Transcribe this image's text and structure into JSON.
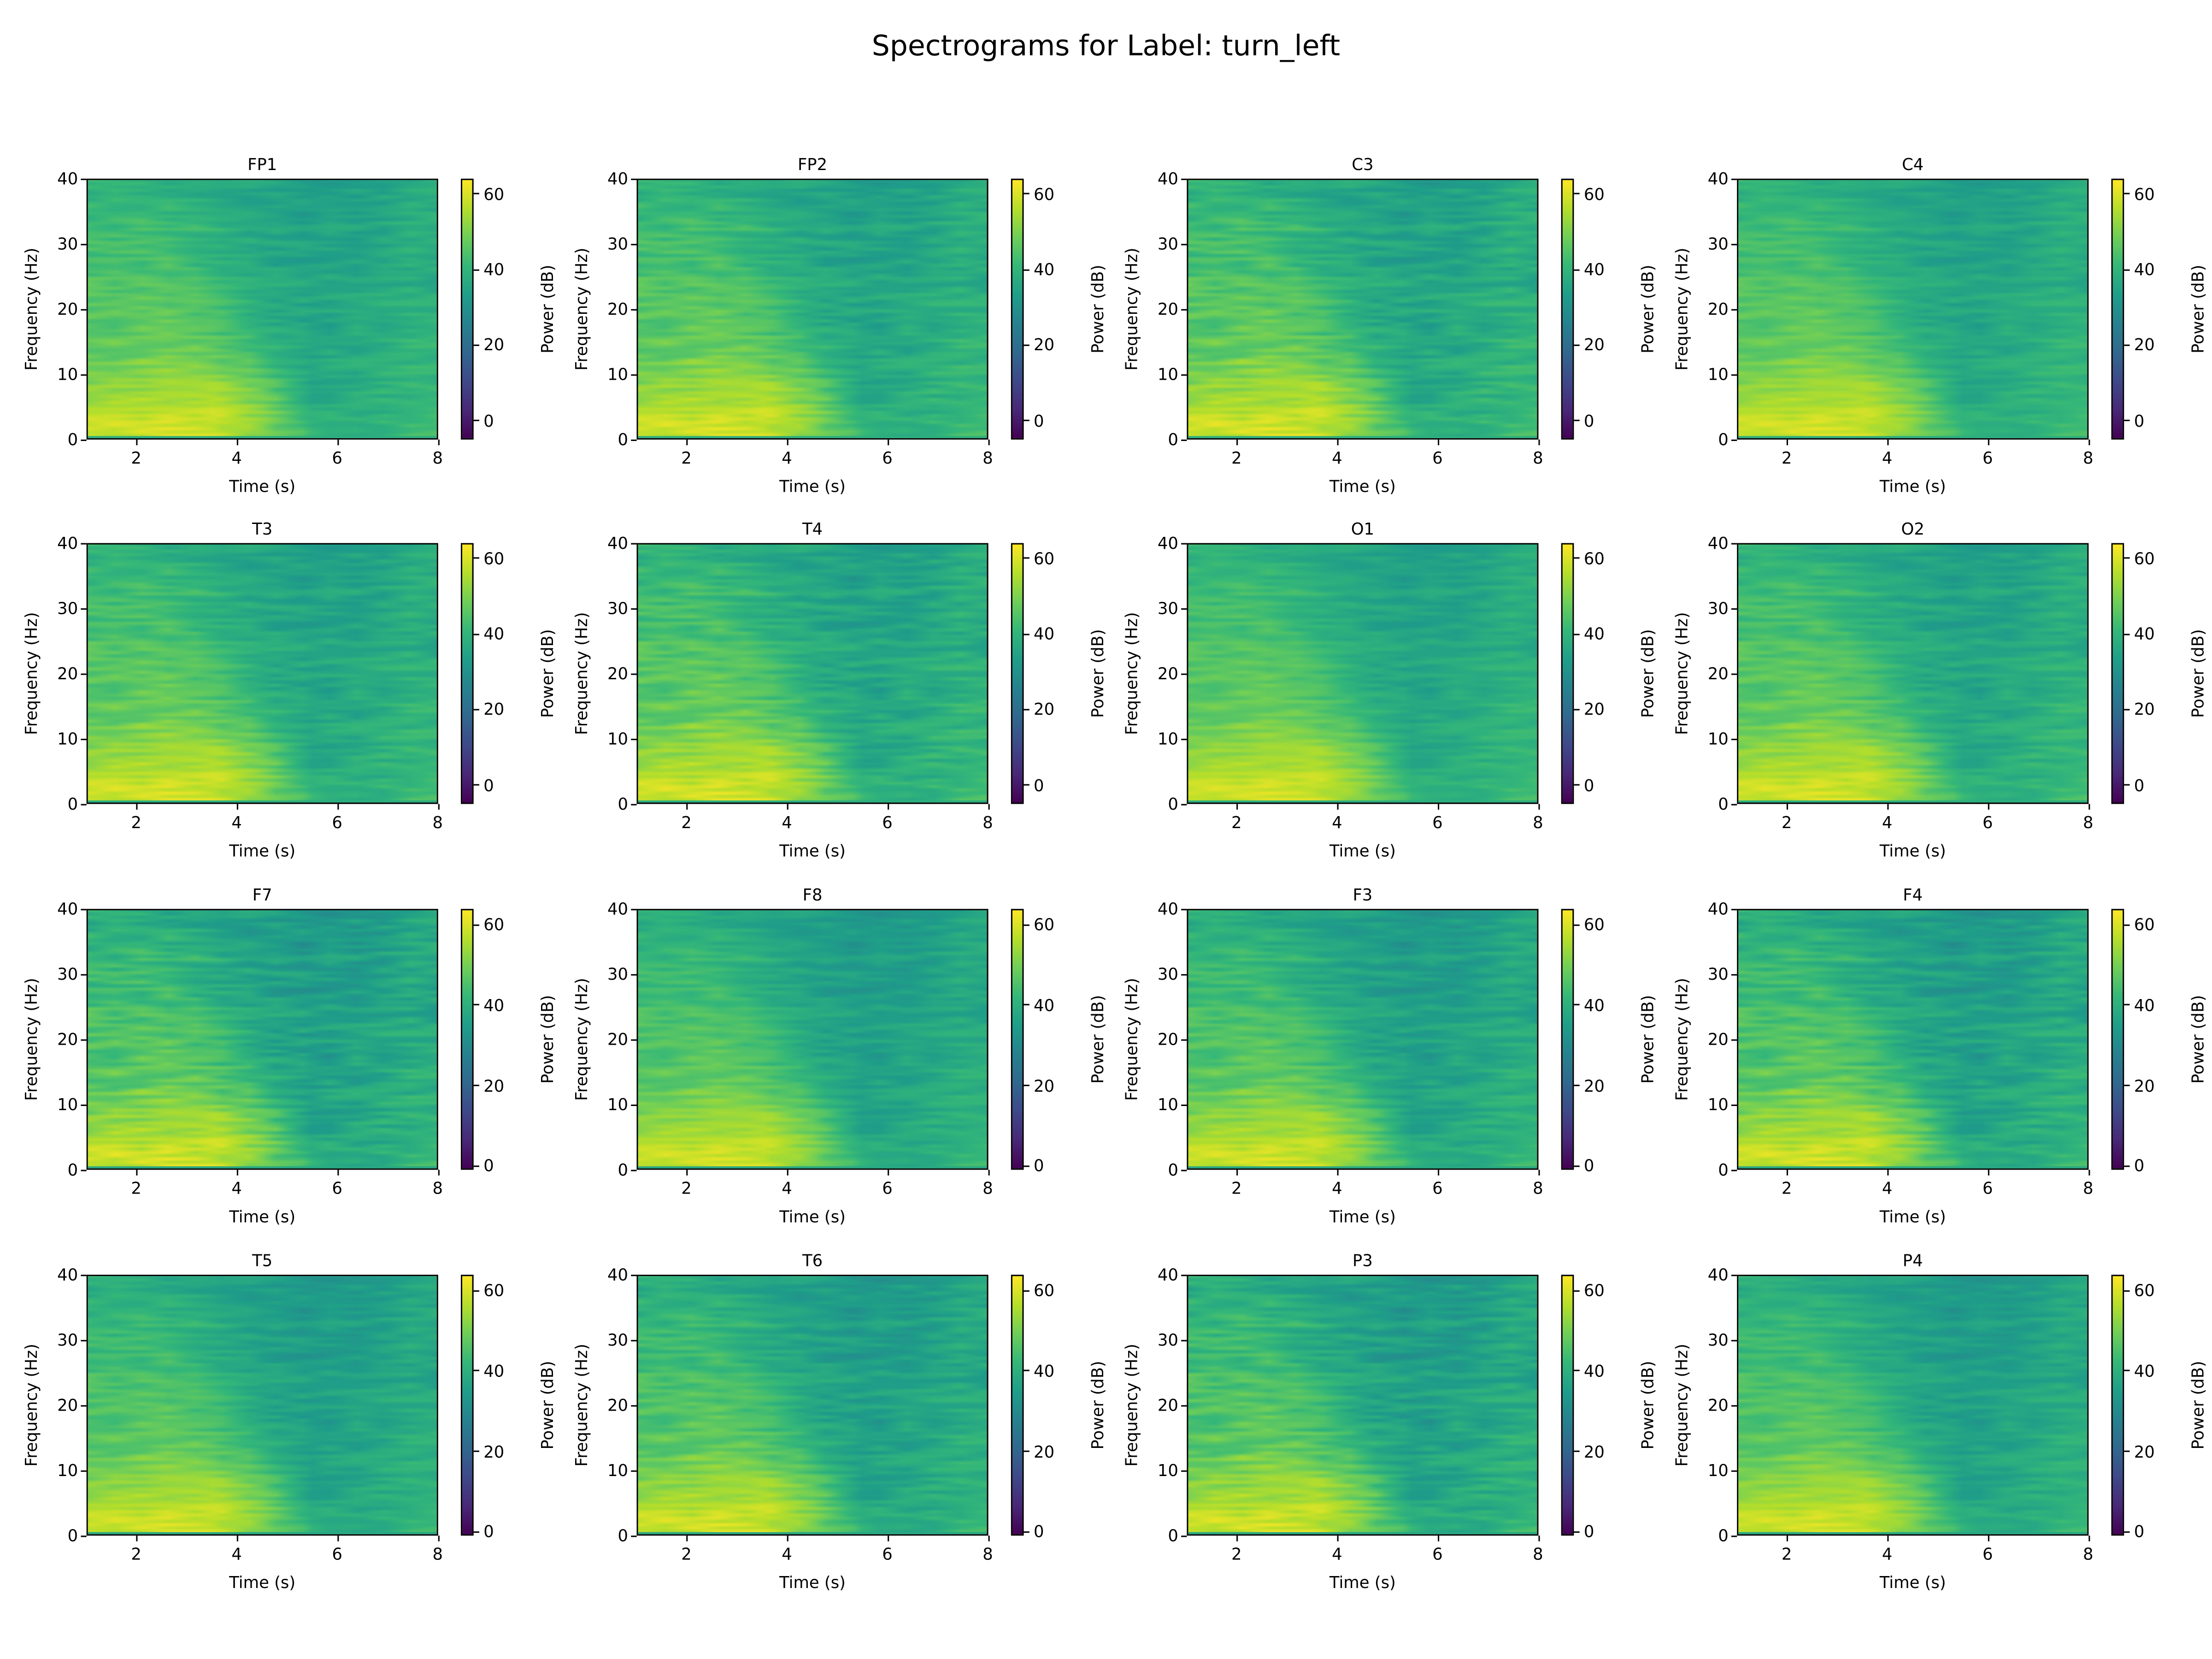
{
  "title": "Spectrograms for Label: turn_left",
  "chart_data": {
    "type": "heatmap",
    "title": "Spectrograms for Label: turn_left",
    "xlabel": "Time (s)",
    "ylabel": "Frequency (Hz)",
    "colorbar_label": "Power (dB)",
    "colormap": "viridis",
    "xlim": [
      1,
      8
    ],
    "ylim": [
      0,
      40
    ],
    "xticks": [
      2,
      4,
      6,
      8
    ],
    "yticks": [
      0,
      10,
      20,
      30,
      40
    ],
    "colorbar_ticks": [
      0,
      20,
      40,
      60
    ],
    "grid": false,
    "layout": "4x4",
    "channels": [
      {
        "name": "FP1",
        "clim": [
          -5,
          64
        ]
      },
      {
        "name": "FP2",
        "clim": [
          -5,
          64
        ]
      },
      {
        "name": "C3",
        "clim": [
          -5,
          64
        ]
      },
      {
        "name": "C4",
        "clim": [
          -5,
          64
        ]
      },
      {
        "name": "T3",
        "clim": [
          -5,
          64
        ]
      },
      {
        "name": "T4",
        "clim": [
          -5,
          64
        ]
      },
      {
        "name": "O1",
        "clim": [
          -5,
          64
        ]
      },
      {
        "name": "O2",
        "clim": [
          -5,
          64
        ]
      },
      {
        "name": "F7",
        "clim": [
          -1,
          64
        ]
      },
      {
        "name": "F8",
        "clim": [
          -1,
          64
        ]
      },
      {
        "name": "F3",
        "clim": [
          -1,
          64
        ]
      },
      {
        "name": "F4",
        "clim": [
          -1,
          64
        ]
      },
      {
        "name": "T5",
        "clim": [
          -1,
          64
        ]
      },
      {
        "name": "T6",
        "clim": [
          -1,
          64
        ]
      },
      {
        "name": "P3",
        "clim": [
          -1,
          64
        ]
      },
      {
        "name": "P4",
        "clim": [
          -1,
          64
        ]
      }
    ],
    "approx_power_grid": {
      "time_s": [
        1.5,
        2.5,
        3.5,
        4.5,
        5.5,
        6.5,
        7.5
      ],
      "freq_hz": [
        2.5,
        7.5,
        12.5,
        17.5,
        22.5,
        27.5,
        32.5,
        37.5
      ],
      "power_db": [
        [
          58,
          60,
          59,
          52,
          40,
          38,
          42
        ],
        [
          52,
          54,
          54,
          48,
          36,
          38,
          40
        ],
        [
          48,
          50,
          48,
          42,
          36,
          38,
          40
        ],
        [
          46,
          47,
          44,
          38,
          35,
          37,
          40
        ],
        [
          45,
          46,
          42,
          38,
          36,
          37,
          38
        ],
        [
          44,
          44,
          40,
          36,
          35,
          36,
          38
        ],
        [
          42,
          42,
          40,
          36,
          35,
          36,
          38
        ],
        [
          40,
          39,
          38,
          35,
          33,
          35,
          37
        ]
      ]
    }
  }
}
